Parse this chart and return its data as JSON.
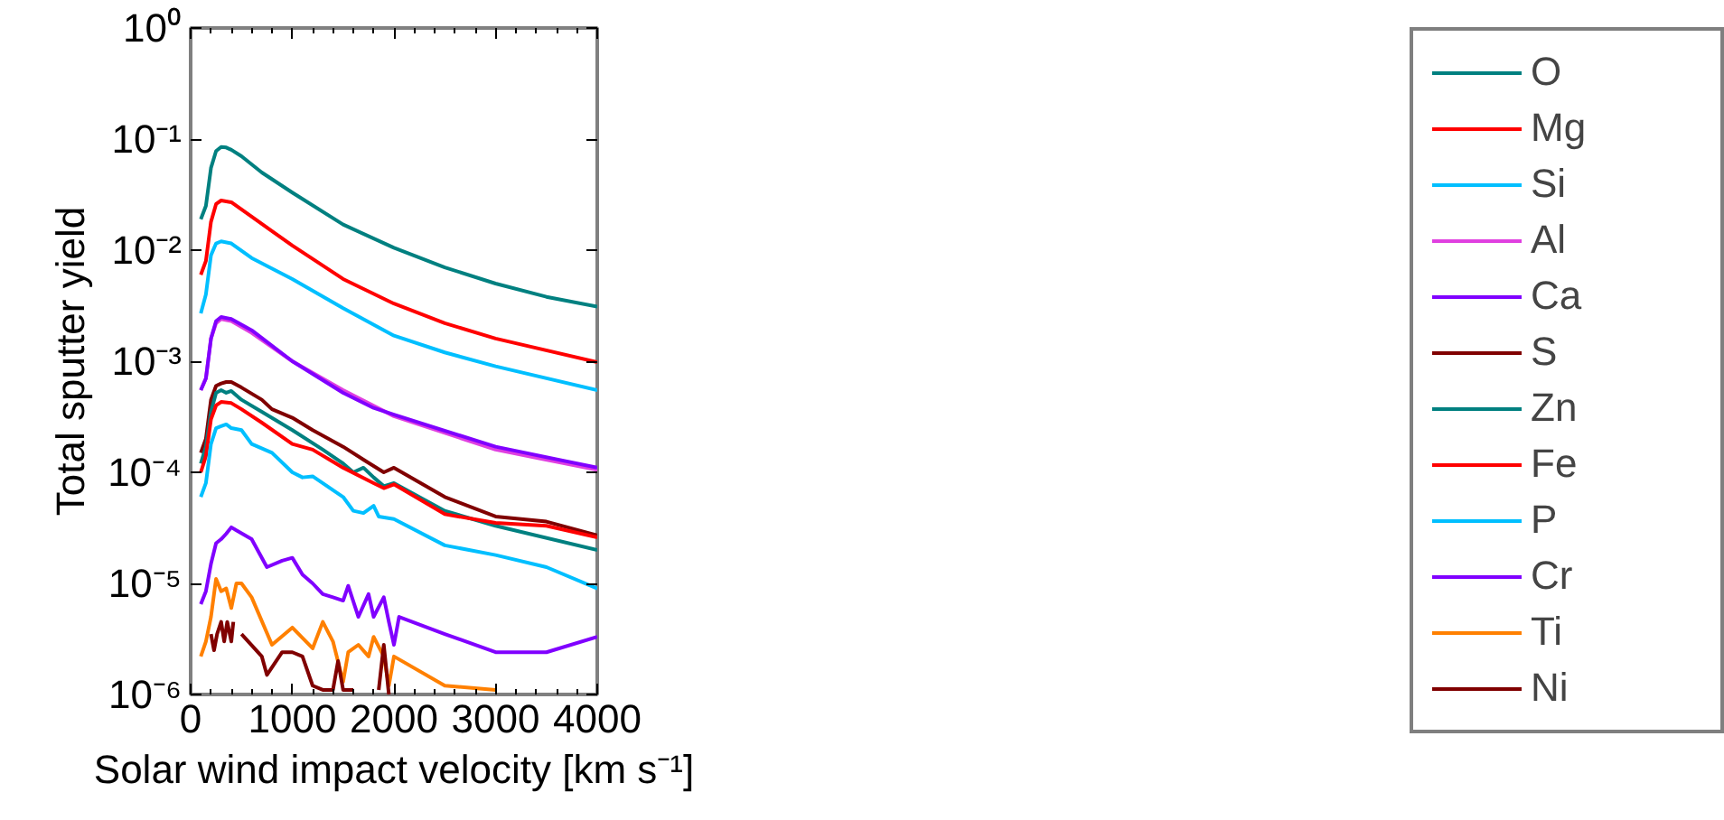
{
  "chart_data": {
    "type": "line",
    "xlabel": "Solar wind impact velocity [km s⁻¹]",
    "ylabel": "Total sputter yield",
    "log": "y",
    "grid": false,
    "legend": "right",
    "marker": "none",
    "line_style": "solid",
    "xlim": [
      0,
      4000
    ],
    "xticks": [
      0,
      1000,
      2000,
      3000,
      4000
    ],
    "ylim": [
      1e-06,
      1
    ],
    "yticks": [
      {
        "value": 1e-06,
        "label": "10⁻⁶"
      },
      {
        "value": 1e-05,
        "label": "10⁻⁵"
      },
      {
        "value": 0.0001,
        "label": "10⁻⁴"
      },
      {
        "value": 0.001,
        "label": "10⁻³"
      },
      {
        "value": 0.01,
        "label": "10⁻²"
      },
      {
        "value": 0.1,
        "label": "10⁻¹"
      },
      {
        "value": 1,
        "label": "10⁰"
      }
    ],
    "series": [
      {
        "name": "O",
        "color": "#008080",
        "x": [
          100,
          150,
          200,
          250,
          300,
          350,
          400,
          500,
          700,
          1000,
          1500,
          2000,
          2500,
          3000,
          3500,
          4000
        ],
        "values": [
          0.019,
          0.025,
          0.055,
          0.078,
          0.085,
          0.084,
          0.08,
          0.07,
          0.05,
          0.033,
          0.017,
          0.0105,
          0.007,
          0.005,
          0.0038,
          0.0031
        ]
      },
      {
        "name": "Mg",
        "color": "#ff0000",
        "x": [
          100,
          150,
          200,
          250,
          300,
          400,
          600,
          1000,
          1500,
          2000,
          2500,
          3000,
          4000
        ],
        "values": [
          0.006,
          0.008,
          0.018,
          0.026,
          0.028,
          0.027,
          0.02,
          0.011,
          0.0055,
          0.0033,
          0.0022,
          0.0016,
          0.00098
        ]
      },
      {
        "name": "Si",
        "color": "#00bfff",
        "x": [
          100,
          150,
          200,
          250,
          300,
          400,
          600,
          1000,
          1500,
          2000,
          2500,
          3000,
          4000
        ],
        "values": [
          0.0027,
          0.004,
          0.009,
          0.0115,
          0.012,
          0.0115,
          0.0085,
          0.0055,
          0.003,
          0.0017,
          0.0012,
          0.0009,
          0.00055
        ]
      },
      {
        "name": "Al",
        "color": "#e040e0",
        "x": [
          100,
          150,
          200,
          250,
          300,
          400,
          600,
          1000,
          1500,
          2000,
          3000,
          4000
        ],
        "values": [
          0.00055,
          0.0007,
          0.0016,
          0.0022,
          0.0024,
          0.0023,
          0.0018,
          0.001,
          0.00055,
          0.00032,
          0.00016,
          0.000105
        ]
      },
      {
        "name": "Ca",
        "color": "#8000ff",
        "x": [
          100,
          150,
          200,
          250,
          300,
          400,
          600,
          1000,
          1500,
          1800,
          2000,
          3000,
          4000
        ],
        "values": [
          0.00055,
          0.0007,
          0.0016,
          0.0023,
          0.0025,
          0.0024,
          0.0019,
          0.001,
          0.00052,
          0.00038,
          0.00033,
          0.00017,
          0.00011
        ]
      },
      {
        "name": "S",
        "color": "#800000",
        "x": [
          100,
          150,
          200,
          250,
          300,
          350,
          400,
          500,
          700,
          800,
          1000,
          1200,
          1500,
          1700,
          1900,
          2000,
          2500,
          3000,
          3500,
          4000
        ],
        "values": [
          0.00015,
          0.0002,
          0.00045,
          0.0006,
          0.00063,
          0.00065,
          0.00065,
          0.00058,
          0.00045,
          0.00037,
          0.00031,
          0.00024,
          0.00017,
          0.00013,
          0.0001,
          0.00011,
          6e-05,
          4e-05,
          3.6e-05,
          2.7e-05
        ]
      },
      {
        "name": "Zn",
        "color": "#008080",
        "x": [
          100,
          150,
          200,
          250,
          300,
          350,
          400,
          500,
          700,
          1000,
          1300,
          1500,
          1600,
          1700,
          1800,
          1900,
          2000,
          2500,
          3000,
          4000
        ],
        "values": [
          0.00012,
          0.00017,
          0.00035,
          0.00052,
          0.00055,
          0.00052,
          0.00054,
          0.00045,
          0.00035,
          0.00024,
          0.00016,
          0.00012,
          0.0001,
          0.00011,
          9e-05,
          7.5e-05,
          8e-05,
          4.5e-05,
          3.3e-05,
          2e-05
        ]
      },
      {
        "name": "Fe",
        "color": "#ff0000",
        "x": [
          100,
          150,
          200,
          250,
          300,
          400,
          500,
          700,
          1000,
          1200,
          1500,
          1800,
          1900,
          2000,
          2500,
          3000,
          3500,
          4000
        ],
        "values": [
          0.0001,
          0.00014,
          0.0003,
          0.0004,
          0.00043,
          0.00042,
          0.00037,
          0.00028,
          0.00018,
          0.00016,
          0.00011,
          8e-05,
          7.2e-05,
          7.8e-05,
          4.2e-05,
          3.5e-05,
          3.3e-05,
          2.6e-05
        ]
      },
      {
        "name": "P",
        "color": "#00bfff",
        "x": [
          100,
          150,
          200,
          250,
          300,
          350,
          400,
          500,
          600,
          800,
          1000,
          1100,
          1200,
          1500,
          1600,
          1700,
          1800,
          1850,
          2000,
          2500,
          3000,
          3500,
          4000
        ],
        "values": [
          6e-05,
          8e-05,
          0.00018,
          0.00025,
          0.00026,
          0.00027,
          0.00025,
          0.00024,
          0.00018,
          0.00015,
          0.0001,
          9e-05,
          9.2e-05,
          6e-05,
          4.5e-05,
          4.3e-05,
          5e-05,
          4e-05,
          3.8e-05,
          2.2e-05,
          1.8e-05,
          1.4e-05,
          9e-06
        ]
      },
      {
        "name": "Cr",
        "color": "#8000ff",
        "x": [
          100,
          150,
          200,
          250,
          300,
          350,
          400,
          450,
          600,
          750,
          900,
          1000,
          1100,
          1200,
          1300,
          1400,
          1500,
          1550,
          1650,
          1750,
          1800,
          1900,
          1950,
          2000,
          2050,
          2500,
          3000,
          3500,
          4000
        ],
        "values": [
          6.5e-06,
          8.5e-06,
          1.5e-05,
          2.3e-05,
          2.5e-05,
          2.8e-05,
          3.2e-05,
          3e-05,
          2.5e-05,
          1.4e-05,
          1.6e-05,
          1.7e-05,
          1.2e-05,
          1e-05,
          8e-06,
          7.5e-06,
          7e-06,
          9.5e-06,
          5e-06,
          8e-06,
          5e-06,
          7.5e-06,
          4.5e-06,
          2.8e-06,
          5e-06,
          3.5e-06,
          2.4e-06,
          2.4e-06,
          3.3e-06
        ]
      },
      {
        "name": "Ti",
        "color": "#ff8000",
        "x": [
          100,
          150,
          200,
          250,
          300,
          350,
          400,
          450,
          500,
          600,
          800,
          1000,
          1200,
          1300,
          1400,
          1500,
          1550,
          1650,
          1750,
          1800,
          1900,
          1950,
          2000,
          2500,
          3000
        ],
        "values": [
          2.2e-06,
          3e-06,
          5e-06,
          1.1e-05,
          8.5e-06,
          9e-06,
          6e-06,
          1e-05,
          1e-05,
          7.5e-06,
          2.8e-06,
          4e-06,
          2.6e-06,
          4.5e-06,
          3e-06,
          1.3e-06,
          2.4e-06,
          2.8e-06,
          2.2e-06,
          3.3e-06,
          2.2e-06,
          1.2e-06,
          2.2e-06,
          1.2e-06,
          1.1e-06
        ]
      },
      {
        "name": "Ni",
        "color": "#800000",
        "x": [
          200,
          230,
          260,
          300,
          330,
          360,
          400,
          420,
          450,
          500,
          700,
          750,
          900,
          1000,
          1100,
          1200,
          1300,
          1400,
          1450,
          1500,
          1600,
          1700,
          1850,
          1900,
          1950
        ],
        "values": [
          3.5e-06,
          2.5e-06,
          3.5e-06,
          4.5e-06,
          3e-06,
          4.5e-06,
          3e-06,
          4.5e-06,
          null,
          3.5e-06,
          2.2e-06,
          1.5e-06,
          2.4e-06,
          2.4e-06,
          2.2e-06,
          1.2e-06,
          1.1e-06,
          1.1e-06,
          2e-06,
          1.1e-06,
          1.1e-06,
          null,
          1.1e-06,
          2.8e-06,
          1e-06
        ]
      }
    ]
  }
}
